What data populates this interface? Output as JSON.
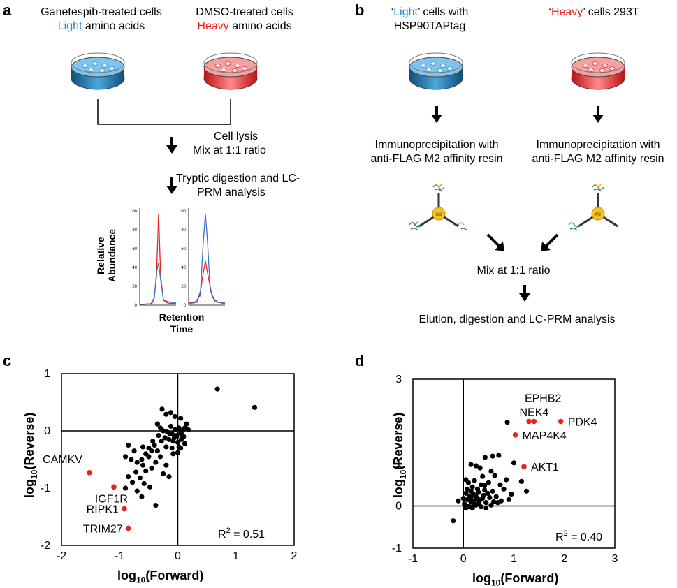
{
  "panel_a": {
    "letter": "a",
    "left_condition": {
      "line1": "Ganetespib-treated cells",
      "line2_highlight": "Light",
      "line2_rest": " amino acids"
    },
    "right_condition": {
      "line1": "DMSO-treated cells",
      "line2_highlight": "Heavy",
      "line2_rest": " amino acids"
    },
    "step1_line1": "Cell lysis",
    "step1_line2": "Mix at 1:1 ratio",
    "step2_line1": "Tryptic digestion and LC-",
    "step2_line2": "PRM analysis",
    "plot_ylabel_1": "Relative",
    "plot_ylabel_2": "Abundance",
    "plot_xlabel_1": "Retention",
    "plot_xlabel_2": "Time",
    "plot_ticks": [
      "100",
      "80",
      "60",
      "40",
      "20",
      "0"
    ]
  },
  "panel_b": {
    "letter": "b",
    "left_cells": {
      "pre": "‘",
      "highlight": "Light",
      "post": "’ cells with",
      "line2": "HSP90TAPtag"
    },
    "right_cells": {
      "pre": "‘",
      "highlight": "Heavy",
      "post": "’ cells 293T"
    },
    "ip_line1": "Immunoprecipitation with",
    "ip_line2": "anti-FLAG M2 affinity resin",
    "bead_label": "M2",
    "mix": "Mix at 1:1 ratio",
    "final": "Elution, digestion and LC-PRM analysis"
  },
  "colors": {
    "light_blue": "#1a8ad4",
    "heavy_red": "#e8231f",
    "point_black": "#000000",
    "point_red": "#e8231f"
  },
  "chart_data": [
    {
      "panel": "c",
      "type": "scatter",
      "xlabel_base": "log",
      "xlabel_sub": "10",
      "xlabel_rest": "(Forward)",
      "ylabel_base": "log",
      "ylabel_sub": "10",
      "ylabel_rest": "(Reverse)",
      "xlim": [
        -2,
        2
      ],
      "ylim": [
        -2,
        1
      ],
      "xticks": [
        "-2",
        "-1",
        "0",
        "1",
        "2"
      ],
      "yticks": [
        "1",
        "0",
        "-1",
        "-2"
      ],
      "r2_text": "R",
      "r2_sup": "2",
      "r2_value": " = 0.51",
      "highlighted": [
        {
          "label": "CAMKV",
          "x": -1.52,
          "y": -0.73
        },
        {
          "label": "IGF1R",
          "x": -1.1,
          "y": -0.98
        },
        {
          "label": "RIPK1",
          "x": -0.92,
          "y": -1.36
        },
        {
          "label": "TRIM27",
          "x": -0.85,
          "y": -1.7
        }
      ],
      "points": [
        [
          0.68,
          0.73
        ],
        [
          1.32,
          0.41
        ],
        [
          -0.27,
          0.38
        ],
        [
          -0.2,
          0.29
        ],
        [
          -0.12,
          0.32
        ],
        [
          -0.05,
          0.25
        ],
        [
          0.05,
          0.22
        ],
        [
          0.15,
          0.12
        ],
        [
          -0.35,
          0.12
        ],
        [
          -0.3,
          0.05
        ],
        [
          -0.25,
          0.0
        ],
        [
          -0.18,
          -0.02
        ],
        [
          -0.1,
          -0.05
        ],
        [
          -0.02,
          -0.08
        ],
        [
          0.05,
          -0.04
        ],
        [
          0.1,
          -0.1
        ],
        [
          -0.22,
          -0.12
        ],
        [
          -0.15,
          -0.15
        ],
        [
          -0.08,
          -0.18
        ],
        [
          0.0,
          -0.2
        ],
        [
          0.06,
          -0.15
        ],
        [
          -0.05,
          0.02
        ],
        [
          0.02,
          0.05
        ],
        [
          -0.12,
          0.08
        ],
        [
          -0.28,
          -0.18
        ],
        [
          -0.33,
          -0.08
        ],
        [
          -0.4,
          -0.25
        ],
        [
          -0.2,
          -0.28
        ],
        [
          -0.1,
          -0.3
        ],
        [
          0.02,
          -0.28
        ],
        [
          0.12,
          -0.22
        ],
        [
          0.08,
          0.0
        ],
        [
          -0.45,
          -0.35
        ],
        [
          -0.5,
          -0.45
        ],
        [
          -0.55,
          -0.4
        ],
        [
          -0.62,
          -0.5
        ],
        [
          -0.6,
          -0.6
        ],
        [
          -0.7,
          -0.55
        ],
        [
          -0.75,
          -0.35
        ],
        [
          -0.8,
          -0.5
        ],
        [
          -0.85,
          -0.25
        ],
        [
          -0.9,
          -0.45
        ],
        [
          -0.72,
          -0.72
        ],
        [
          -0.65,
          -0.82
        ],
        [
          -0.55,
          -0.7
        ],
        [
          -0.45,
          -0.65
        ],
        [
          -0.38,
          -0.55
        ],
        [
          -0.3,
          -0.45
        ],
        [
          -0.85,
          -0.8
        ],
        [
          -0.78,
          -0.9
        ],
        [
          -0.7,
          -1.05
        ],
        [
          -0.9,
          -1.0
        ],
        [
          -0.62,
          -1.15
        ],
        [
          -0.38,
          -1.3
        ],
        [
          -0.48,
          -0.98
        ],
        [
          -0.58,
          -0.92
        ],
        [
          -0.2,
          -0.6
        ],
        [
          -0.25,
          -0.75
        ],
        [
          -0.15,
          -0.8
        ],
        [
          -0.5,
          -0.3
        ],
        [
          -0.43,
          -0.18
        ],
        [
          -0.6,
          -0.28
        ],
        [
          -0.35,
          -0.35
        ],
        [
          -0.08,
          -0.4
        ],
        [
          0.0,
          -0.38
        ],
        [
          0.05,
          -0.3
        ],
        [
          -0.02,
          -0.1
        ],
        [
          0.08,
          -0.08
        ],
        [
          -0.14,
          -0.05
        ],
        [
          -0.06,
          -0.12
        ],
        [
          0.12,
          0.05
        ],
        [
          0.18,
          0.02
        ]
      ]
    },
    {
      "panel": "d",
      "type": "scatter",
      "xlabel_base": "log",
      "xlabel_sub": "10",
      "xlabel_rest": "(Forward)",
      "ylabel_base": "log",
      "ylabel_sub": "10",
      "ylabel_rest": "(Reverse)",
      "xlim": [
        -1,
        3
      ],
      "ylim": [
        -1,
        3
      ],
      "xticks": [
        "-1",
        "0",
        "1",
        "2",
        "3"
      ],
      "yticks": [
        "3",
        "2",
        "1",
        "0",
        "-1"
      ],
      "r2_text": "R",
      "r2_sup": "2",
      "r2_value": " = 0.40",
      "highlighted": [
        {
          "label": "EPHB2",
          "x": 1.3,
          "y": 2.0
        },
        {
          "label": "NEK4",
          "x": 1.4,
          "y": 2.0
        },
        {
          "label": "PDK4",
          "x": 1.93,
          "y": 2.0
        },
        {
          "label": "MAP4K4",
          "x": 1.03,
          "y": 1.68
        },
        {
          "label": "AKT1",
          "x": 1.2,
          "y": 0.93
        }
      ],
      "points": [
        [
          0.87,
          1.98
        ],
        [
          0.7,
          1.2
        ],
        [
          0.58,
          1.18
        ],
        [
          0.43,
          1.15
        ],
        [
          0.15,
          0.98
        ],
        [
          0.25,
          0.95
        ],
        [
          0.33,
          0.9
        ],
        [
          0.55,
          0.82
        ],
        [
          1.0,
          1.02
        ],
        [
          0.73,
          0.5
        ],
        [
          0.95,
          0.28
        ],
        [
          1.15,
          0.58
        ],
        [
          1.25,
          0.35
        ],
        [
          0.85,
          0.62
        ],
        [
          0.62,
          0.72
        ],
        [
          0.5,
          0.55
        ],
        [
          0.05,
          0.62
        ],
        [
          0.1,
          0.55
        ],
        [
          0.18,
          0.45
        ],
        [
          0.28,
          0.4
        ],
        [
          0.35,
          0.5
        ],
        [
          0.42,
          0.38
        ],
        [
          0.3,
          0.32
        ],
        [
          0.2,
          0.28
        ],
        [
          0.12,
          0.22
        ],
        [
          0.08,
          0.15
        ],
        [
          0.15,
          0.1
        ],
        [
          0.22,
          0.12
        ],
        [
          0.3,
          0.05
        ],
        [
          0.38,
          0.18
        ],
        [
          0.45,
          0.08
        ],
        [
          0.52,
          0.2
        ],
        [
          0.6,
          0.1
        ],
        [
          0.02,
          0.05
        ],
        [
          0.05,
          0.3
        ],
        [
          0.0,
          0.18
        ],
        [
          0.1,
          0.0
        ],
        [
          0.18,
          -0.05
        ],
        [
          0.25,
          0.02
        ],
        [
          0.35,
          -0.02
        ],
        [
          0.45,
          -0.05
        ],
        [
          0.55,
          0.02
        ],
        [
          0.65,
          0.22
        ],
        [
          0.75,
          0.12
        ],
        [
          -0.2,
          -0.35
        ],
        [
          -0.1,
          0.12
        ],
        [
          0.15,
          0.35
        ],
        [
          0.25,
          0.22
        ],
        [
          0.4,
          0.25
        ],
        [
          0.48,
          0.3
        ],
        [
          0.58,
          0.35
        ],
        [
          0.68,
          0.08
        ],
        [
          0.12,
          -0.02
        ],
        [
          0.2,
          0.05
        ],
        [
          0.28,
          0.18
        ],
        [
          0.32,
          0.12
        ],
        [
          0.08,
          0.4
        ],
        [
          0.22,
          0.6
        ],
        [
          0.38,
          0.7
        ],
        [
          0.8,
          0.4
        ],
        [
          0.9,
          0.15
        ],
        [
          0.05,
          -0.05
        ],
        [
          0.15,
          0.2
        ],
        [
          0.42,
          0.48
        ]
      ]
    }
  ]
}
